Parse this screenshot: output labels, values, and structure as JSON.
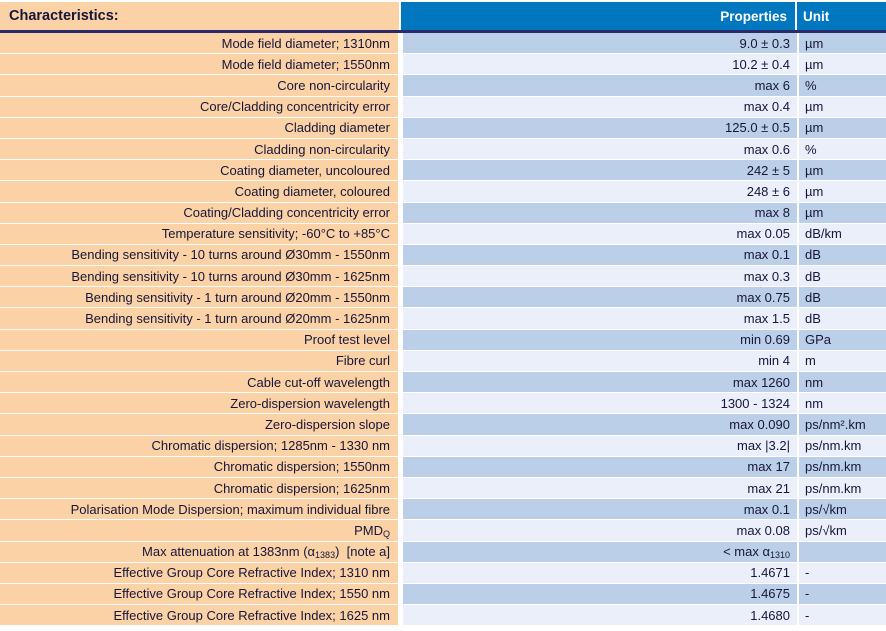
{
  "colors": {
    "header_blue": "#0077BE",
    "peach": "#FAD2A6",
    "row_dark": "#BCCFE8",
    "row_light": "#EAEFF9",
    "divider_navy": "#29296B",
    "text_dark": "#16163A"
  },
  "table": {
    "header": {
      "characteristics": "Characteristics:",
      "properties": "Properties",
      "unit": "Unit"
    },
    "rows": [
      {
        "characteristic": "Mode field diameter; 1310nm",
        "property": "9.0 ± 0.3",
        "unit": "µm"
      },
      {
        "characteristic": "Mode field diameter; 1550nm",
        "property": "10.2 ± 0.4",
        "unit": "µm"
      },
      {
        "characteristic": "Core non-circularity",
        "property": "max 6",
        "unit": "%"
      },
      {
        "characteristic": "Core/Cladding concentricity error",
        "property": "max 0.4",
        "unit": "µm"
      },
      {
        "characteristic": "Cladding diameter",
        "property": "125.0 ± 0.5",
        "unit": "µm"
      },
      {
        "characteristic": "Cladding non-circularity",
        "property": "max 0.6",
        "unit": "%"
      },
      {
        "characteristic": "Coating diameter, uncoloured",
        "property": "242 ± 5",
        "unit": "µm"
      },
      {
        "characteristic": "Coating diameter, coloured",
        "property": "248 ± 6",
        "unit": "µm"
      },
      {
        "characteristic": "Coating/Cladding concentricity error",
        "property": "max 8",
        "unit": "µm"
      },
      {
        "characteristic": "Temperature sensitivity; -60°C to +85°C",
        "property": "max 0.05",
        "unit": "dB/km"
      },
      {
        "characteristic": "Bending sensitivity - 10 turns around Ø30mm - 1550nm",
        "property": "max 0.1",
        "unit": "dB"
      },
      {
        "characteristic": "Bending sensitivity - 10 turns around Ø30mm - 1625nm",
        "property": "max 0.3",
        "unit": "dB"
      },
      {
        "characteristic": "Bending sensitivity - 1 turn around Ø20mm - 1550nm",
        "property": "max 0.75",
        "unit": "dB"
      },
      {
        "characteristic": "Bending sensitivity - 1 turn around Ø20mm - 1625nm",
        "property": "max 1.5",
        "unit": "dB"
      },
      {
        "characteristic": "Proof test level",
        "property": "min 0.69",
        "unit": "GPa"
      },
      {
        "characteristic": "Fibre curl",
        "property": "min 4",
        "unit": "m"
      },
      {
        "characteristic": "Cable cut-off wavelength",
        "property": "max 1260",
        "unit": "nm"
      },
      {
        "characteristic": "Zero-dispersion wavelength",
        "property": "1300 - 1324",
        "unit": "nm"
      },
      {
        "characteristic": "Zero-dispersion slope",
        "property": "max 0.090",
        "unit": "ps/nm².km"
      },
      {
        "characteristic": "Chromatic dispersion; 1285nm - 1330 nm",
        "property": "max |3.2|",
        "unit": "ps/nm.km"
      },
      {
        "characteristic": "Chromatic dispersion; 1550nm",
        "property": "max 17",
        "unit": "ps/nm.km"
      },
      {
        "characteristic": "Chromatic dispersion; 1625nm",
        "property": "max 21",
        "unit": "ps/nm.km"
      },
      {
        "characteristic": "Polarisation Mode Dispersion; maximum individual fibre",
        "property": "max 0.1",
        "unit": "ps/√km"
      },
      {
        "characteristic": "PMD~Q~",
        "property": "max 0.08",
        "unit": "ps/√km"
      },
      {
        "characteristic": "Max attenuation at 1383nm (α~1383~)  [note a]",
        "property": "< max α~1310~",
        "unit": ""
      },
      {
        "characteristic": "Effective Group Core Refractive Index; 1310 nm",
        "property": "1.4671",
        "unit": "-"
      },
      {
        "characteristic": "Effective Group Core Refractive Index; 1550 nm",
        "property": "1.4675",
        "unit": "-"
      },
      {
        "characteristic": "Effective Group Core Refractive Index; 1625 nm",
        "property": "1.4680",
        "unit": "-"
      }
    ]
  }
}
